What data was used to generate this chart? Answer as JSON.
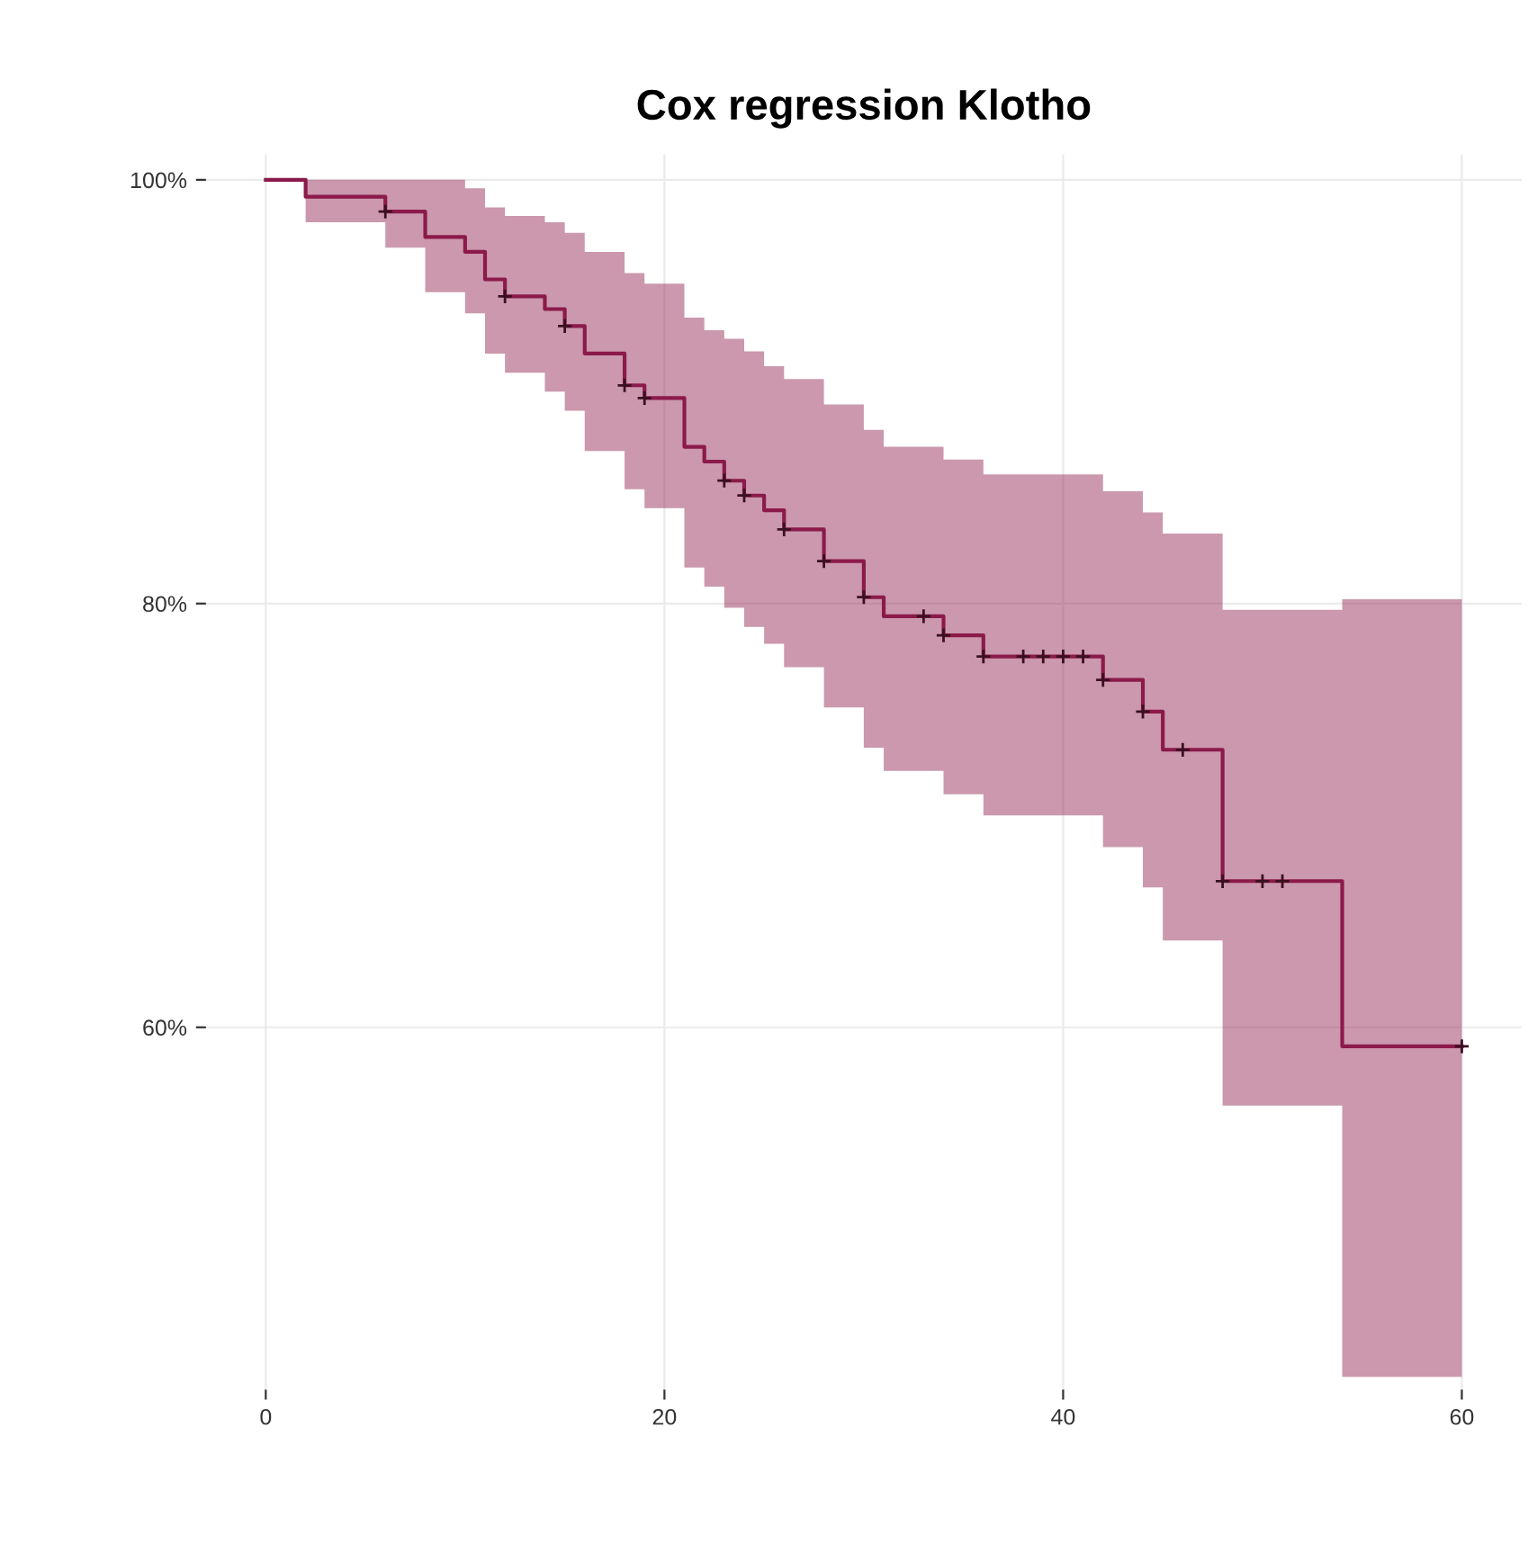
{
  "chart_data": {
    "type": "step",
    "title": "Cox regression Klotho",
    "xlim": [
      -3,
      63
    ],
    "xticks": [
      0,
      20,
      40,
      60
    ],
    "ylim": [
      42.9,
      101.2
    ],
    "yticks": [
      {
        "value": 60,
        "label": "60%"
      },
      {
        "value": 80,
        "label": "80%"
      },
      {
        "value": 100,
        "label": "100%"
      }
    ],
    "grid": true,
    "series": [
      {
        "color": "#8b1a4a",
        "line_style": "solid",
        "marker": "none",
        "x": [
          0,
          2,
          6,
          8,
          10,
          11,
          12,
          14,
          15,
          16,
          18,
          19,
          21,
          22,
          23,
          24,
          25,
          26,
          28,
          30,
          31,
          34,
          36,
          42,
          44,
          45,
          48,
          54,
          60
        ],
        "values": [
          100,
          99.2,
          98.5,
          97.3,
          96.6,
          95.3,
          94.5,
          93.9,
          93.1,
          91.8,
          90.3,
          89.7,
          87.4,
          86.7,
          85.8,
          85.1,
          84.4,
          83.5,
          82.0,
          80.3,
          79.4,
          78.5,
          77.5,
          76.4,
          74.9,
          73.1,
          66.9,
          59.1,
          59.1
        ],
        "upper": [
          100,
          100,
          100,
          100,
          99.6,
          98.7,
          98.3,
          98.0,
          97.5,
          96.6,
          95.6,
          95.1,
          93.5,
          92.9,
          92.5,
          91.9,
          91.2,
          90.6,
          89.4,
          88.2,
          87.4,
          86.8,
          86.1,
          85.3,
          84.3,
          83.3,
          79.7,
          80.2,
          80.2
        ],
        "lower": [
          100,
          98.0,
          96.8,
          94.7,
          93.7,
          91.8,
          90.9,
          90.0,
          89.1,
          87.2,
          85.4,
          84.5,
          81.7,
          80.8,
          79.8,
          78.9,
          78.1,
          77.0,
          75.1,
          73.2,
          72.1,
          71.0,
          70.0,
          68.5,
          66.6,
          64.1,
          56.3,
          43.5,
          43.5
        ]
      },
      {
        "type": "scatter",
        "color": "#3a1020",
        "marker": "cross",
        "x": [
          6,
          12,
          15,
          18,
          19,
          23,
          24,
          26,
          28,
          30,
          33,
          34,
          36,
          38,
          39,
          40,
          41,
          42,
          44,
          46,
          48,
          50,
          51,
          60
        ],
        "values": [
          98.5,
          94.5,
          93.1,
          90.3,
          89.7,
          85.8,
          85.1,
          83.5,
          82.0,
          80.3,
          79.4,
          78.5,
          77.5,
          77.5,
          77.5,
          77.5,
          77.5,
          76.4,
          74.9,
          73.1,
          66.9,
          66.9,
          66.9,
          59.1
        ]
      }
    ]
  }
}
